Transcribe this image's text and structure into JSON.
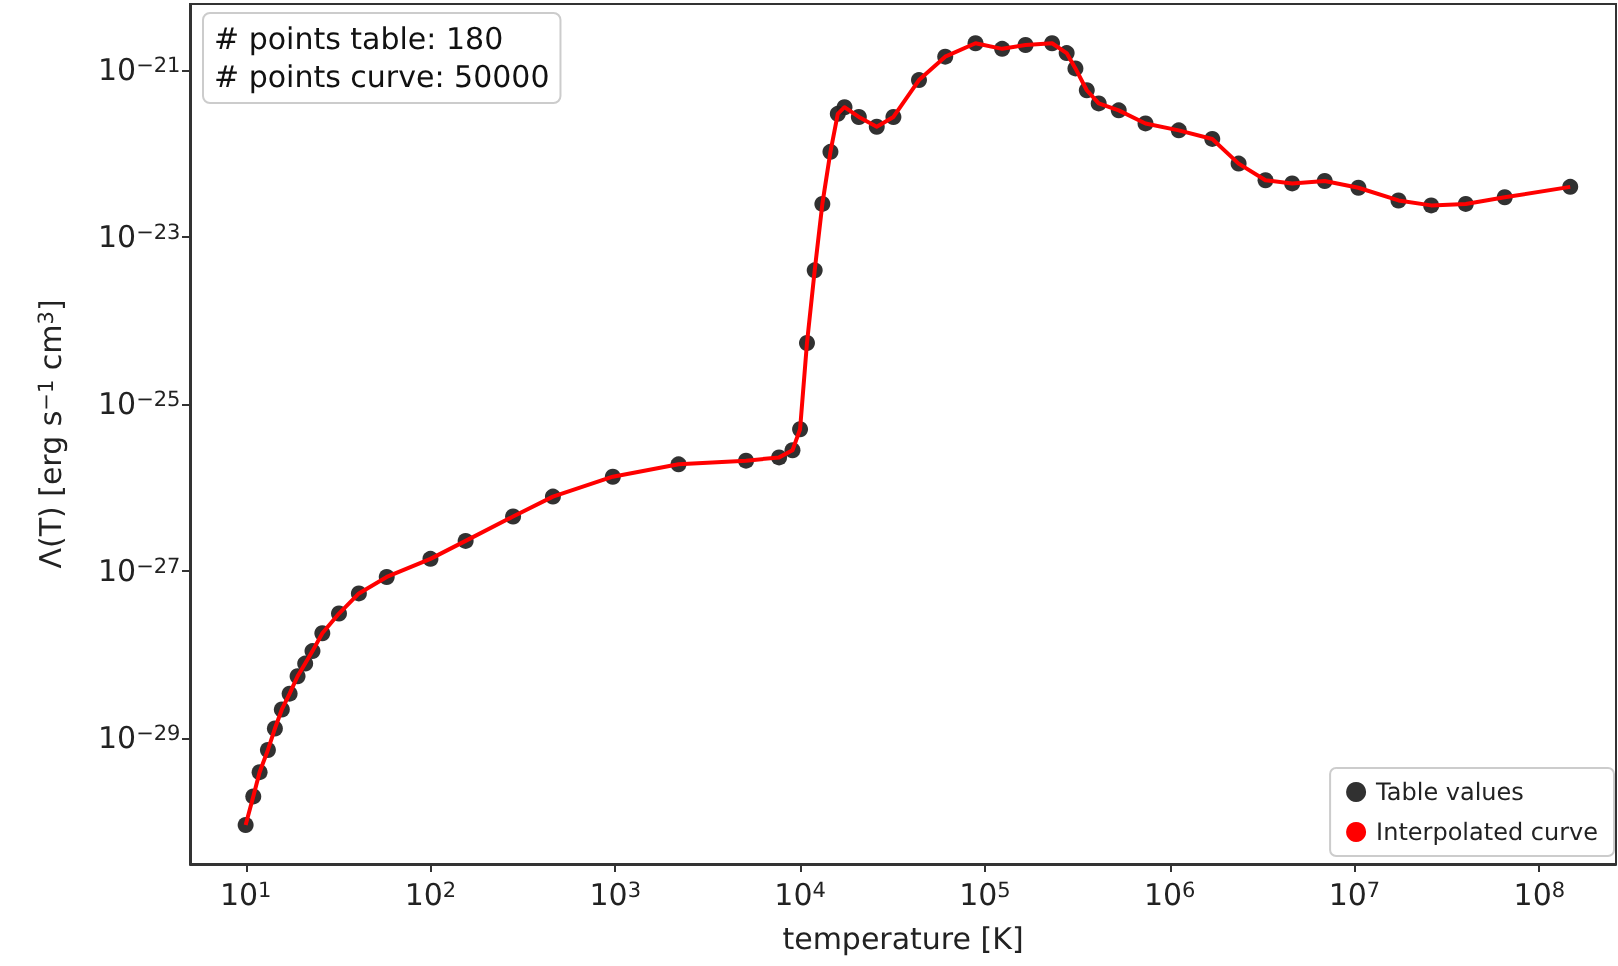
{
  "chart_data": {
    "type": "scatter",
    "xlabel": "temperature [K]",
    "ylabel": "Λ(T) [erg s$^{−1}$ cm$^{3}$]",
    "annotations": [
      "# points table: 180",
      "# points curve: 50000"
    ],
    "log": "xy",
    "grid": false,
    "legend": "bottom right",
    "xlim": [
      5,
      260000000
    ],
    "ylim": [
      3.1e-31,
      6.2e-21
    ],
    "xticks": [
      {
        "value": 10,
        "label": "10$^{1}$"
      },
      {
        "value": 100,
        "label": "10$^{2}$"
      },
      {
        "value": 1000,
        "label": "10$^{3}$"
      },
      {
        "value": 10000,
        "label": "10$^{4}$"
      },
      {
        "value": 100000,
        "label": "10$^{5}$"
      },
      {
        "value": 1000000,
        "label": "10$^{6}$"
      },
      {
        "value": 10000000,
        "label": "10$^{7}$"
      },
      {
        "value": 100000000,
        "label": "10$^{8}$"
      }
    ],
    "yticks": [
      {
        "value": 1e-29,
        "label": "10$^{−29}$"
      },
      {
        "value": 1e-27,
        "label": "10$^{−27}$"
      },
      {
        "value": 1e-25,
        "label": "10$^{−25}$"
      },
      {
        "value": 1e-23,
        "label": "10$^{−23}$"
      },
      {
        "value": 1e-21,
        "label": "10$^{−21}$"
      }
    ],
    "x": [
      10,
      11,
      11.9,
      13.2,
      14.4,
      15.7,
      17.3,
      19.1,
      21,
      23,
      26,
      32,
      41,
      58,
      100,
      155,
      280,
      460,
      970,
      2200,
      5100,
      7700,
      9100,
      10000,
      10900,
      12000,
      13200,
      14600,
      16000,
      17400,
      20800,
      26000,
      32000,
      44000,
      61000,
      89000,
      124000,
      166000,
      231000,
      277000,
      309000,
      356000,
      413000,
      530000,
      740000,
      1120000,
      1700000,
      2360000,
      3300000,
      4600000,
      6900000,
      10500000,
      17300000,
      26000000,
      40000000,
      65000000,
      147000000
    ],
    "series": [
      {
        "name": "Table values",
        "marker": "circle",
        "color": "#262626",
        "values": [
          9.1e-31,
          2e-30,
          3.9e-30,
          7.2e-30,
          1.3e-29,
          2.2e-29,
          3.4e-29,
          5.5e-29,
          7.8e-29,
          1.1e-28,
          1.8e-28,
          3.1e-28,
          5.4e-28,
          8.5e-28,
          1.4e-27,
          2.3e-27,
          4.5e-27,
          7.8e-27,
          1.35e-26,
          1.9e-26,
          2.1e-26,
          2.3e-26,
          2.8e-26,
          5e-26,
          5.4e-25,
          4e-24,
          2.5e-23,
          1.05e-22,
          3e-22,
          3.6e-22,
          2.75e-22,
          2.1e-22,
          2.75e-22,
          7.6e-22,
          1.45e-21,
          2.1e-21,
          1.8e-21,
          2e-21,
          2.1e-21,
          1.6e-21,
          1.05e-21,
          5.75e-22,
          4e-22,
          3.3e-22,
          2.3e-22,
          1.9e-22,
          1.5e-22,
          7.6e-23,
          4.8e-23,
          4.4e-23,
          4.7e-23,
          3.9e-23,
          2.75e-23,
          2.4e-23,
          2.5e-23,
          3e-23,
          4e-23
        ]
      },
      {
        "name": "Interpolated curve",
        "type": "line",
        "marker": "none",
        "color": "#ff0000",
        "values": [
          9.1e-31,
          2e-30,
          3.9e-30,
          7.2e-30,
          1.3e-29,
          2.2e-29,
          3.4e-29,
          5.5e-29,
          7.8e-29,
          1.1e-28,
          1.8e-28,
          3.1e-28,
          5.4e-28,
          8.5e-28,
          1.4e-27,
          2.3e-27,
          4.5e-27,
          7.8e-27,
          1.35e-26,
          1.9e-26,
          2.1e-26,
          2.3e-26,
          2.8e-26,
          5e-26,
          5.4e-25,
          4e-24,
          2.5e-23,
          1.05e-22,
          3e-22,
          3.6e-22,
          2.75e-22,
          2.1e-22,
          2.75e-22,
          7.6e-22,
          1.45e-21,
          2.1e-21,
          1.8e-21,
          2e-21,
          2.1e-21,
          1.6e-21,
          1.05e-21,
          5.75e-22,
          4e-22,
          3.3e-22,
          2.3e-22,
          1.9e-22,
          1.5e-22,
          7.6e-23,
          4.8e-23,
          4.4e-23,
          4.7e-23,
          3.9e-23,
          2.75e-23,
          2.4e-23,
          2.5e-23,
          3e-23,
          4e-23
        ]
      }
    ]
  }
}
